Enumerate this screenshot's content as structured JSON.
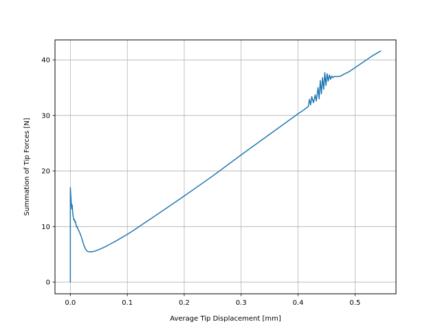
{
  "chart_data": {
    "type": "line",
    "title": "",
    "xlabel": "Average Tip Displacement [mm]",
    "ylabel": "Summation of Tip Forces [N]",
    "xlim": [
      -0.027,
      0.572
    ],
    "ylim": [
      -2.1,
      43.6
    ],
    "grid": true,
    "legend": "none",
    "x_ticks": [
      {
        "value": 0.0,
        "label": "0.0"
      },
      {
        "value": 0.1,
        "label": "0.1"
      },
      {
        "value": 0.2,
        "label": "0.2"
      },
      {
        "value": 0.3,
        "label": "0.3"
      },
      {
        "value": 0.4,
        "label": "0.4"
      },
      {
        "value": 0.5,
        "label": "0.5"
      }
    ],
    "y_ticks": [
      {
        "value": 0,
        "label": "0"
      },
      {
        "value": 10,
        "label": "10"
      },
      {
        "value": 20,
        "label": "20"
      },
      {
        "value": 30,
        "label": "30"
      },
      {
        "value": 40,
        "label": "40"
      }
    ],
    "series": [
      {
        "color": "#1f77b4",
        "points": [
          [
            0.0,
            0.0
          ],
          [
            0.0,
            17.0
          ],
          [
            0.0008,
            15.6
          ],
          [
            0.0016,
            14.2
          ],
          [
            0.0024,
            13.2
          ],
          [
            0.0032,
            13.9
          ],
          [
            0.004,
            12.6
          ],
          [
            0.005,
            11.8
          ],
          [
            0.006,
            11.2
          ],
          [
            0.007,
            11.3
          ],
          [
            0.008,
            10.8
          ],
          [
            0.009,
            10.9
          ],
          [
            0.01,
            10.3
          ],
          [
            0.011,
            9.9
          ],
          [
            0.012,
            10.0
          ],
          [
            0.013,
            9.6
          ],
          [
            0.014,
            9.4
          ],
          [
            0.016,
            9.0
          ],
          [
            0.018,
            8.5
          ],
          [
            0.02,
            7.9
          ],
          [
            0.022,
            7.2
          ],
          [
            0.024,
            6.6
          ],
          [
            0.026,
            6.1
          ],
          [
            0.028,
            5.75
          ],
          [
            0.03,
            5.55
          ],
          [
            0.033,
            5.45
          ],
          [
            0.036,
            5.45
          ],
          [
            0.04,
            5.5
          ],
          [
            0.045,
            5.65
          ],
          [
            0.05,
            5.85
          ],
          [
            0.06,
            6.3
          ],
          [
            0.07,
            6.85
          ],
          [
            0.08,
            7.4
          ],
          [
            0.09,
            8.0
          ],
          [
            0.1,
            8.6
          ],
          [
            0.11,
            9.25
          ],
          [
            0.12,
            9.95
          ],
          [
            0.15,
            12.0
          ],
          [
            0.2,
            15.5
          ],
          [
            0.25,
            19.1
          ],
          [
            0.3,
            22.9
          ],
          [
            0.35,
            26.6
          ],
          [
            0.4,
            30.3
          ],
          [
            0.41,
            31.0
          ],
          [
            0.418,
            31.6
          ],
          [
            0.42,
            32.9
          ],
          [
            0.422,
            31.9
          ],
          [
            0.424,
            33.4
          ],
          [
            0.427,
            32.3
          ],
          [
            0.43,
            33.7
          ],
          [
            0.432,
            32.6
          ],
          [
            0.435,
            35.0
          ],
          [
            0.437,
            33.0
          ],
          [
            0.439,
            36.3
          ],
          [
            0.441,
            33.9
          ],
          [
            0.443,
            36.8
          ],
          [
            0.445,
            34.7
          ],
          [
            0.447,
            37.7
          ],
          [
            0.449,
            35.4
          ],
          [
            0.451,
            37.5
          ],
          [
            0.453,
            36.2
          ],
          [
            0.455,
            37.3
          ],
          [
            0.457,
            36.5
          ],
          [
            0.459,
            37.1
          ],
          [
            0.461,
            36.8
          ],
          [
            0.463,
            37.0
          ],
          [
            0.47,
            37.0
          ],
          [
            0.475,
            37.1
          ],
          [
            0.48,
            37.4
          ],
          [
            0.49,
            37.9
          ],
          [
            0.5,
            38.6
          ],
          [
            0.51,
            39.3
          ],
          [
            0.52,
            40.0
          ],
          [
            0.53,
            40.7
          ],
          [
            0.54,
            41.3
          ],
          [
            0.545,
            41.6
          ]
        ]
      }
    ]
  }
}
